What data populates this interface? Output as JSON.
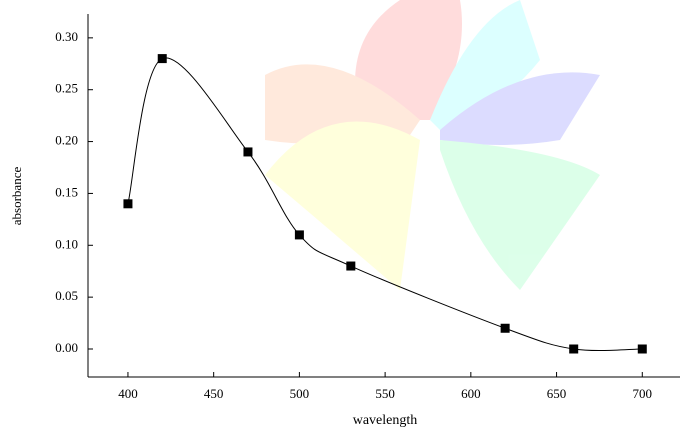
{
  "chart_data": {
    "type": "scatter",
    "x_label": "wavelength",
    "y_label": "absorbance",
    "x": [
      400,
      420,
      470,
      500,
      530,
      620,
      660,
      700
    ],
    "values": [
      0.14,
      0.28,
      0.19,
      0.11,
      0.08,
      0.02,
      0,
      0
    ],
    "color": "#000000",
    "xlim": [
      376.7,
      722
    ],
    "ylim": [
      -0.027,
      0.323
    ],
    "xticks": [
      400,
      450,
      500,
      550,
      600,
      650,
      700
    ],
    "yticks": [
      {
        "value": 0,
        "label": "0.00"
      },
      {
        "value": 0.05,
        "label": "0.05"
      },
      {
        "value": 0.1,
        "label": "0.10"
      },
      {
        "value": 0.15,
        "label": "0.15"
      },
      {
        "value": 0.2,
        "label": "0.20"
      },
      {
        "value": 0.25,
        "label": "0.25"
      },
      {
        "value": 0.3,
        "label": "0.30"
      }
    ]
  }
}
